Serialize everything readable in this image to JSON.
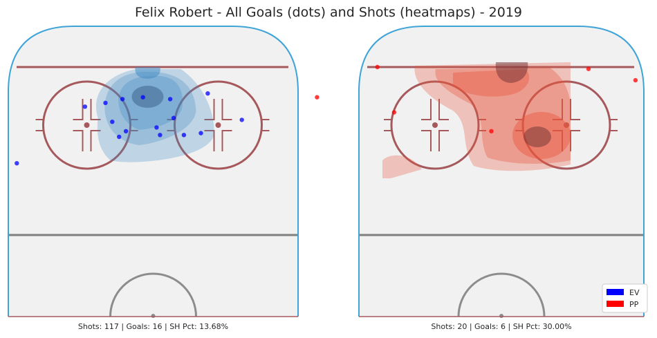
{
  "chart_data": {
    "type": "scatter",
    "title": "Felix Robert - All Goals (dots) and Shots (heatmaps) - 2019",
    "panels": [
      {
        "name": "EV",
        "caption": "Shots: 117 | Goals: 16 | SH Pct: 13.68%",
        "color": "#0000ff",
        "heat_color": "#3c87c3",
        "goals": [
          [
            -20,
            68
          ],
          [
            -14,
            70
          ],
          [
            -9,
            72
          ],
          [
            -3,
            73
          ],
          [
            5,
            72
          ],
          [
            16,
            75
          ],
          [
            -12,
            60
          ],
          [
            -8,
            55
          ],
          [
            -10,
            52
          ],
          [
            1,
            57
          ],
          [
            6,
            62
          ],
          [
            2,
            53
          ],
          [
            9,
            53
          ],
          [
            14,
            54
          ],
          [
            26,
            61
          ],
          [
            -40,
            38
          ]
        ],
        "shots_density_levels": 4
      },
      {
        "name": "PP",
        "caption": "Shots: 20 | Goals: 6 | SH Pct: 30.00%",
        "color": "#ff0000",
        "heat_color": "#e8563b",
        "goals": [
          [
            -37,
            89
          ],
          [
            -55,
            73
          ],
          [
            26,
            88
          ],
          [
            40,
            82
          ],
          [
            -32,
            65
          ],
          [
            -3,
            55
          ]
        ],
        "shots_density_levels": 4
      }
    ],
    "legend": {
      "position": "lower-right",
      "entries": [
        {
          "label": "EV",
          "color": "#0000ff"
        },
        {
          "label": "PP",
          "color": "#ff0000"
        }
      ]
    },
    "xlim": [
      -42.5,
      42.5
    ],
    "ylim": [
      0,
      100
    ]
  }
}
